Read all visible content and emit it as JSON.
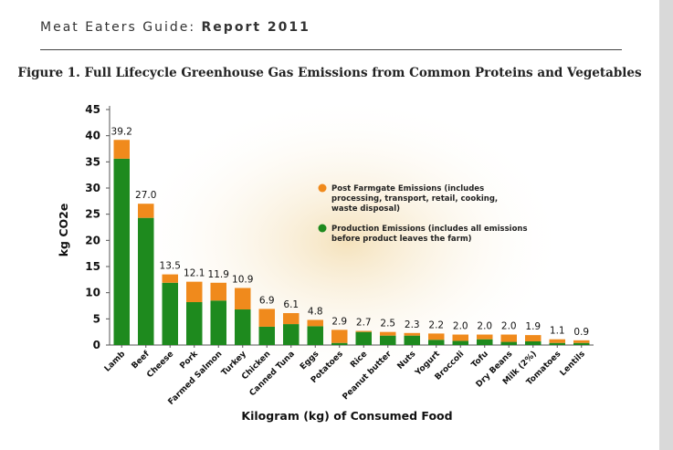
{
  "header": {
    "prefix": "Meat Eaters Guide: ",
    "report": "Report 2011"
  },
  "figure_title": "Figure 1. Full Lifecycle Greenhouse Gas Emissions from Common Proteins and Vegetables",
  "chart_data": {
    "type": "bar",
    "stacked": true,
    "title": "Figure 1. Full Lifecycle Greenhouse Gas Emissions from Common Proteins and Vegetables",
    "ylabel": "kg CO2e",
    "xlabel": "Kilogram (kg) of Consumed Food",
    "ylim": [
      0,
      45
    ],
    "yticks": [
      0,
      5,
      10,
      15,
      20,
      25,
      30,
      35,
      40,
      45
    ],
    "categories": [
      "Lamb",
      "Beef",
      "Cheese",
      "Pork",
      "Farmed Salmon",
      "Turkey",
      "Chicken",
      "Canned Tuna",
      "Eggs",
      "Potatoes",
      "Rice",
      "Peanut butter",
      "Nuts",
      "Yogurt",
      "Broccoli",
      "Tofu",
      "Dry Beans",
      "Milk (2%)",
      "Tomatoes",
      "Lentils"
    ],
    "totals": [
      39.2,
      27.0,
      13.5,
      12.1,
      11.9,
      10.9,
      6.9,
      6.1,
      4.8,
      2.9,
      2.7,
      2.5,
      2.3,
      2.2,
      2.0,
      2.0,
      2.0,
      1.9,
      1.1,
      0.9
    ],
    "total_labels": [
      "39.2",
      "27.0",
      "13.5",
      "12.1",
      "11.9",
      "10.9",
      "6.9",
      "6.1",
      "4.8",
      "2.9",
      "2.7",
      "2.5",
      "2.3",
      "2.2",
      "2.0",
      "2.0",
      "2.0",
      "1.9",
      "1.1",
      "0.9"
    ],
    "series": [
      {
        "name": "Production Emissions (includes all emissions before product leaves the farm)",
        "color": "#1e8a1e",
        "values": [
          35.6,
          24.3,
          11.9,
          8.2,
          8.5,
          6.8,
          3.5,
          4.0,
          3.6,
          0.4,
          2.5,
          1.8,
          1.8,
          1.0,
          0.8,
          1.1,
          0.6,
          0.7,
          0.4,
          0.4
        ]
      },
      {
        "name": "Post Farmgate Emissions (includes processing, transport, retail, cooking, waste disposal)",
        "color": "#f08a1c",
        "values": [
          3.6,
          2.7,
          1.6,
          3.9,
          3.4,
          4.1,
          3.4,
          2.1,
          1.2,
          2.5,
          0.2,
          0.7,
          0.5,
          1.2,
          1.2,
          0.9,
          1.4,
          1.2,
          0.7,
          0.5
        ]
      }
    ],
    "grid": false,
    "legend": {
      "position": "right",
      "post_farmgate": [
        "Post Farmgate Emissions (includes",
        "processing, transport, retail, cooking,",
        "waste disposal)"
      ],
      "production": [
        "Production Emissions (includes all emissions",
        "before product leaves the farm)"
      ]
    }
  }
}
